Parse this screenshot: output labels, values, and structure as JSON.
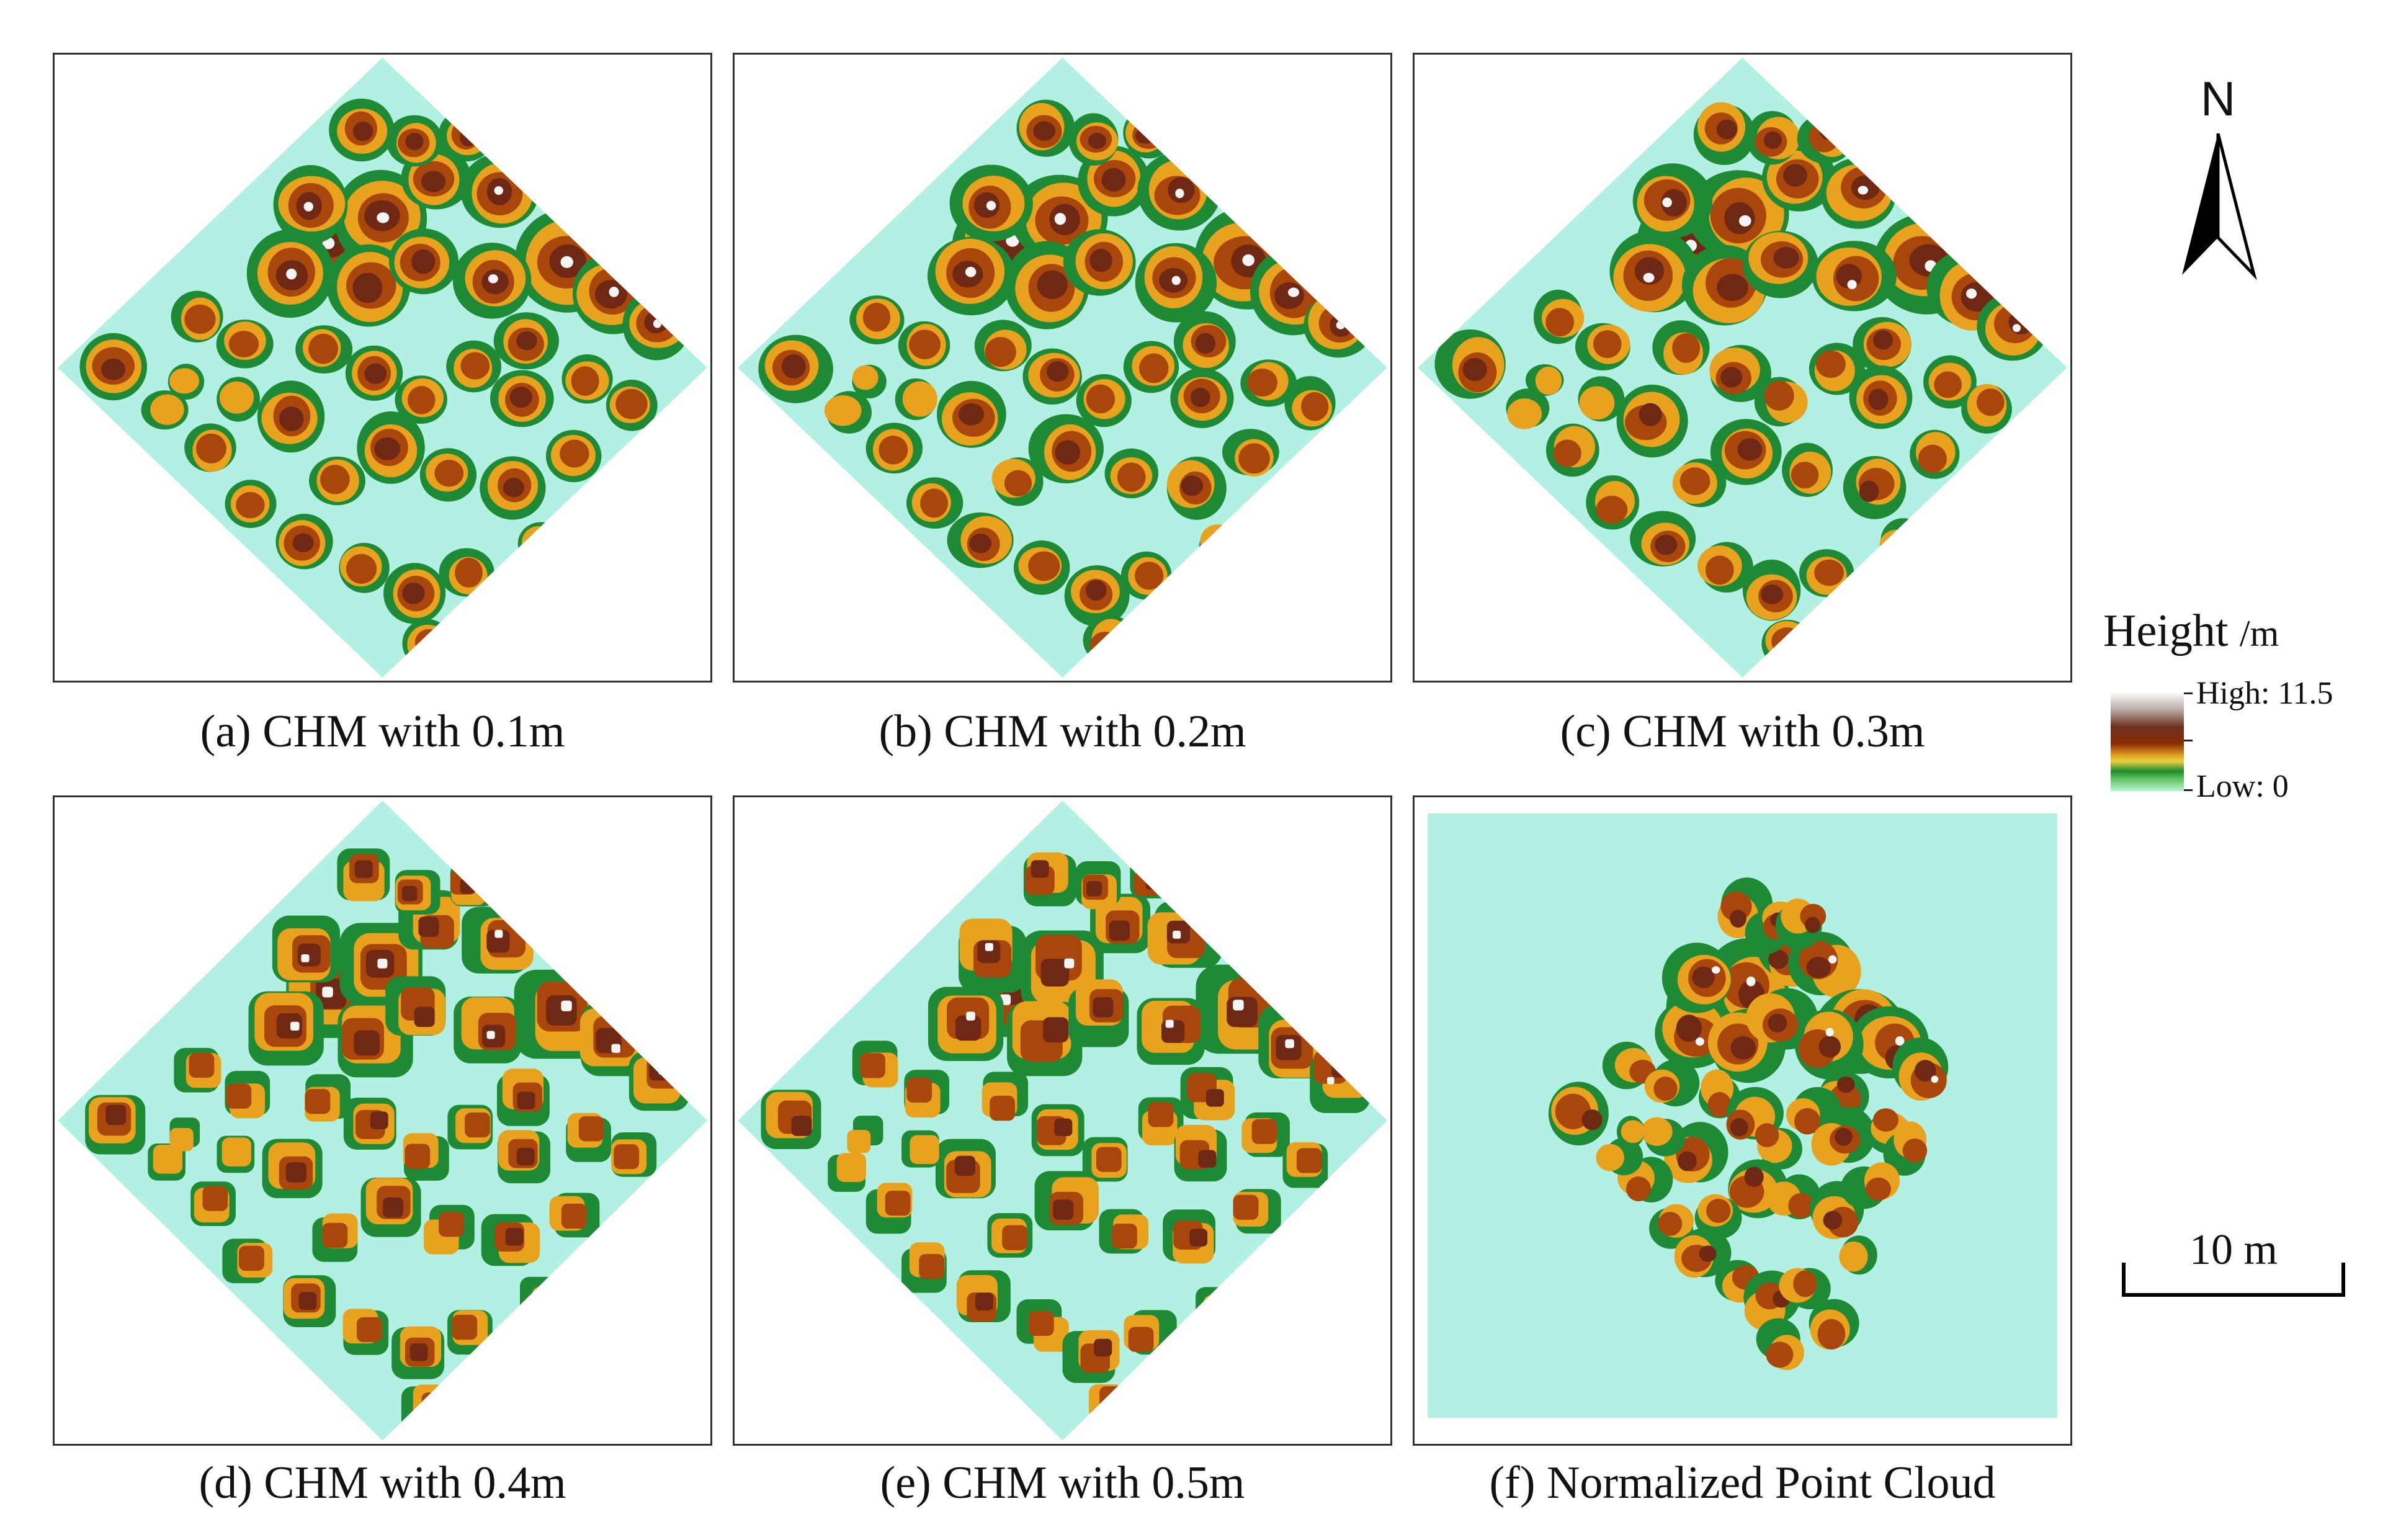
{
  "panels": [
    {
      "id": "a",
      "caption": "(a) CHM with 0.1m",
      "resolution_m": 0.1
    },
    {
      "id": "b",
      "caption": "(b) CHM with 0.2m",
      "resolution_m": 0.2
    },
    {
      "id": "c",
      "caption": "(c) CHM with 0.3m",
      "resolution_m": 0.3
    },
    {
      "id": "d",
      "caption": "(d) CHM with 0.4m",
      "resolution_m": 0.4
    },
    {
      "id": "e",
      "caption": "(e) CHM with 0.5m",
      "resolution_m": 0.5
    },
    {
      "id": "f",
      "caption": "(f) Normalized Point Cloud",
      "resolution_m": null
    }
  ],
  "north_arrow": {
    "label": "N"
  },
  "legend": {
    "title": "Height",
    "unit": "/m",
    "high_label": "High: 11.5",
    "low_label": "Low: 0",
    "high_value": 11.5,
    "low_value": 0
  },
  "scale_bar": {
    "label": "10 m",
    "length_m": 10
  },
  "colors": {
    "ground": "#b2f0e4",
    "very_low": "#1f8a35",
    "low": "#e8a21e",
    "mid": "#a8460c",
    "high": "#6e2814",
    "top": "#f4f4f4"
  }
}
